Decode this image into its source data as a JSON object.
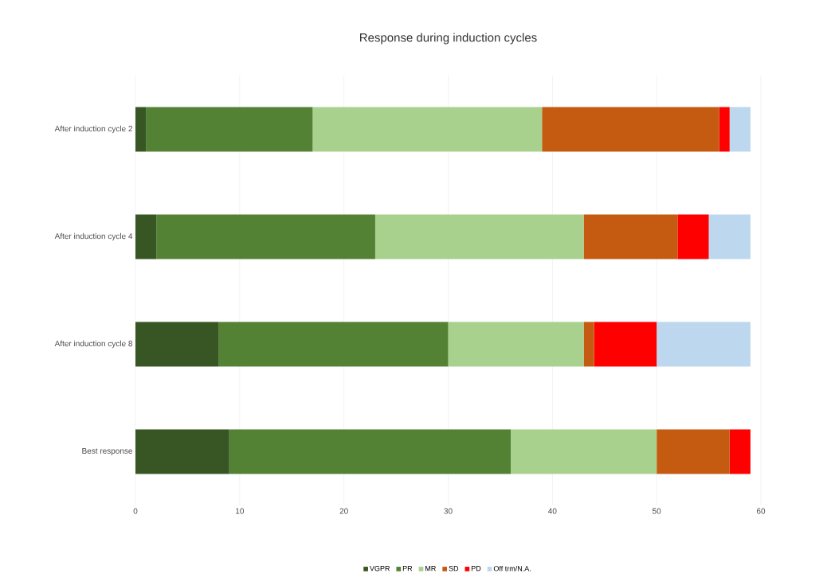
{
  "chart_data": {
    "type": "bar",
    "orientation": "horizontal",
    "stacked": true,
    "title": "Response during induction cycles",
    "categories": [
      "After induction cycle 2",
      "After induction cycle 4",
      "After induction cycle 8",
      "Best response"
    ],
    "series": [
      {
        "name": "VGPR",
        "color": "#375623",
        "values": [
          1,
          2,
          8,
          9
        ]
      },
      {
        "name": "PR",
        "color": "#548235",
        "values": [
          16,
          21,
          22,
          27
        ]
      },
      {
        "name": "MR",
        "color": "#a9d18e",
        "values": [
          22,
          20,
          13,
          14
        ]
      },
      {
        "name": "SD",
        "color": "#c55a11",
        "values": [
          17,
          9,
          1,
          7
        ]
      },
      {
        "name": "PD",
        "color": "#ff0000",
        "values": [
          1,
          3,
          6,
          2
        ]
      },
      {
        "name": "Off trm/N.A.",
        "color": "#bdd7ee",
        "values": [
          2,
          4,
          9,
          0
        ]
      }
    ],
    "xlim": [
      0,
      60
    ],
    "xticks": [
      0,
      10,
      20,
      30,
      40,
      50,
      60
    ],
    "grid": "x",
    "legend": "bottom"
  }
}
